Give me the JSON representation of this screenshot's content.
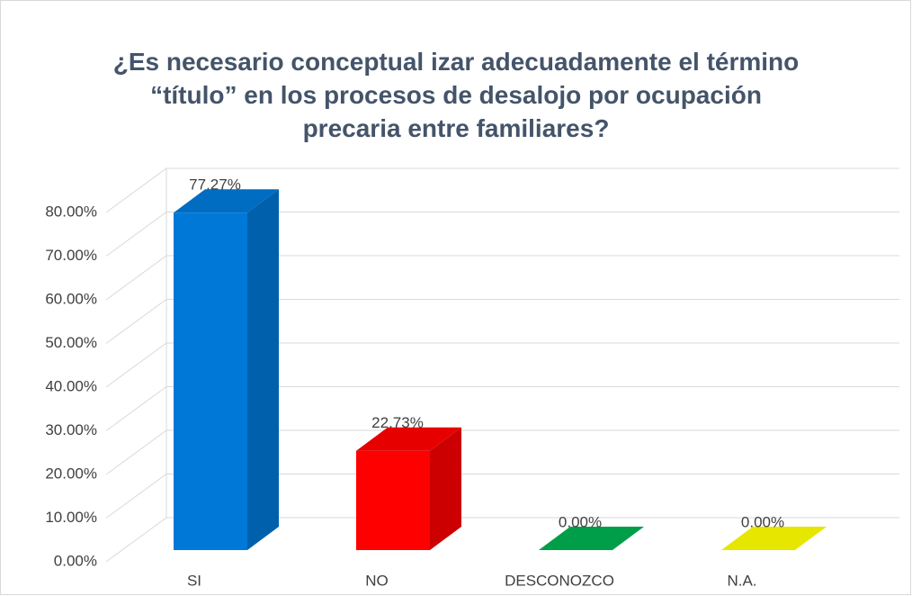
{
  "chart_data": {
    "type": "bar3d",
    "title": "¿Es necesario conceptual izar adecuadamente el término “título” en los procesos de desalojo por ocupación precaria entre familiares?",
    "categories": [
      "SI",
      "NO",
      "DESCONOZCO",
      "N.A."
    ],
    "values": [
      77.27,
      22.73,
      0,
      0
    ],
    "value_labels": [
      "77.27%",
      "22.73%",
      "0.00%",
      "0.00%"
    ],
    "colors": [
      "#0078d7",
      "#ff0000",
      "#00b050",
      "#ffff00"
    ],
    "ylim": [
      0,
      80
    ],
    "yticks": [
      {
        "value": 0,
        "label": "0.00%"
      },
      {
        "value": 10,
        "label": "10.00%"
      },
      {
        "value": 20,
        "label": "20.00%"
      },
      {
        "value": 30,
        "label": "30.00%"
      },
      {
        "value": 40,
        "label": "40.00%"
      },
      {
        "value": 50,
        "label": "50.00%"
      },
      {
        "value": 60,
        "label": "60.00%"
      },
      {
        "value": 70,
        "label": "70.00%"
      },
      {
        "value": 80,
        "label": "80.00%"
      }
    ],
    "grid": true
  }
}
